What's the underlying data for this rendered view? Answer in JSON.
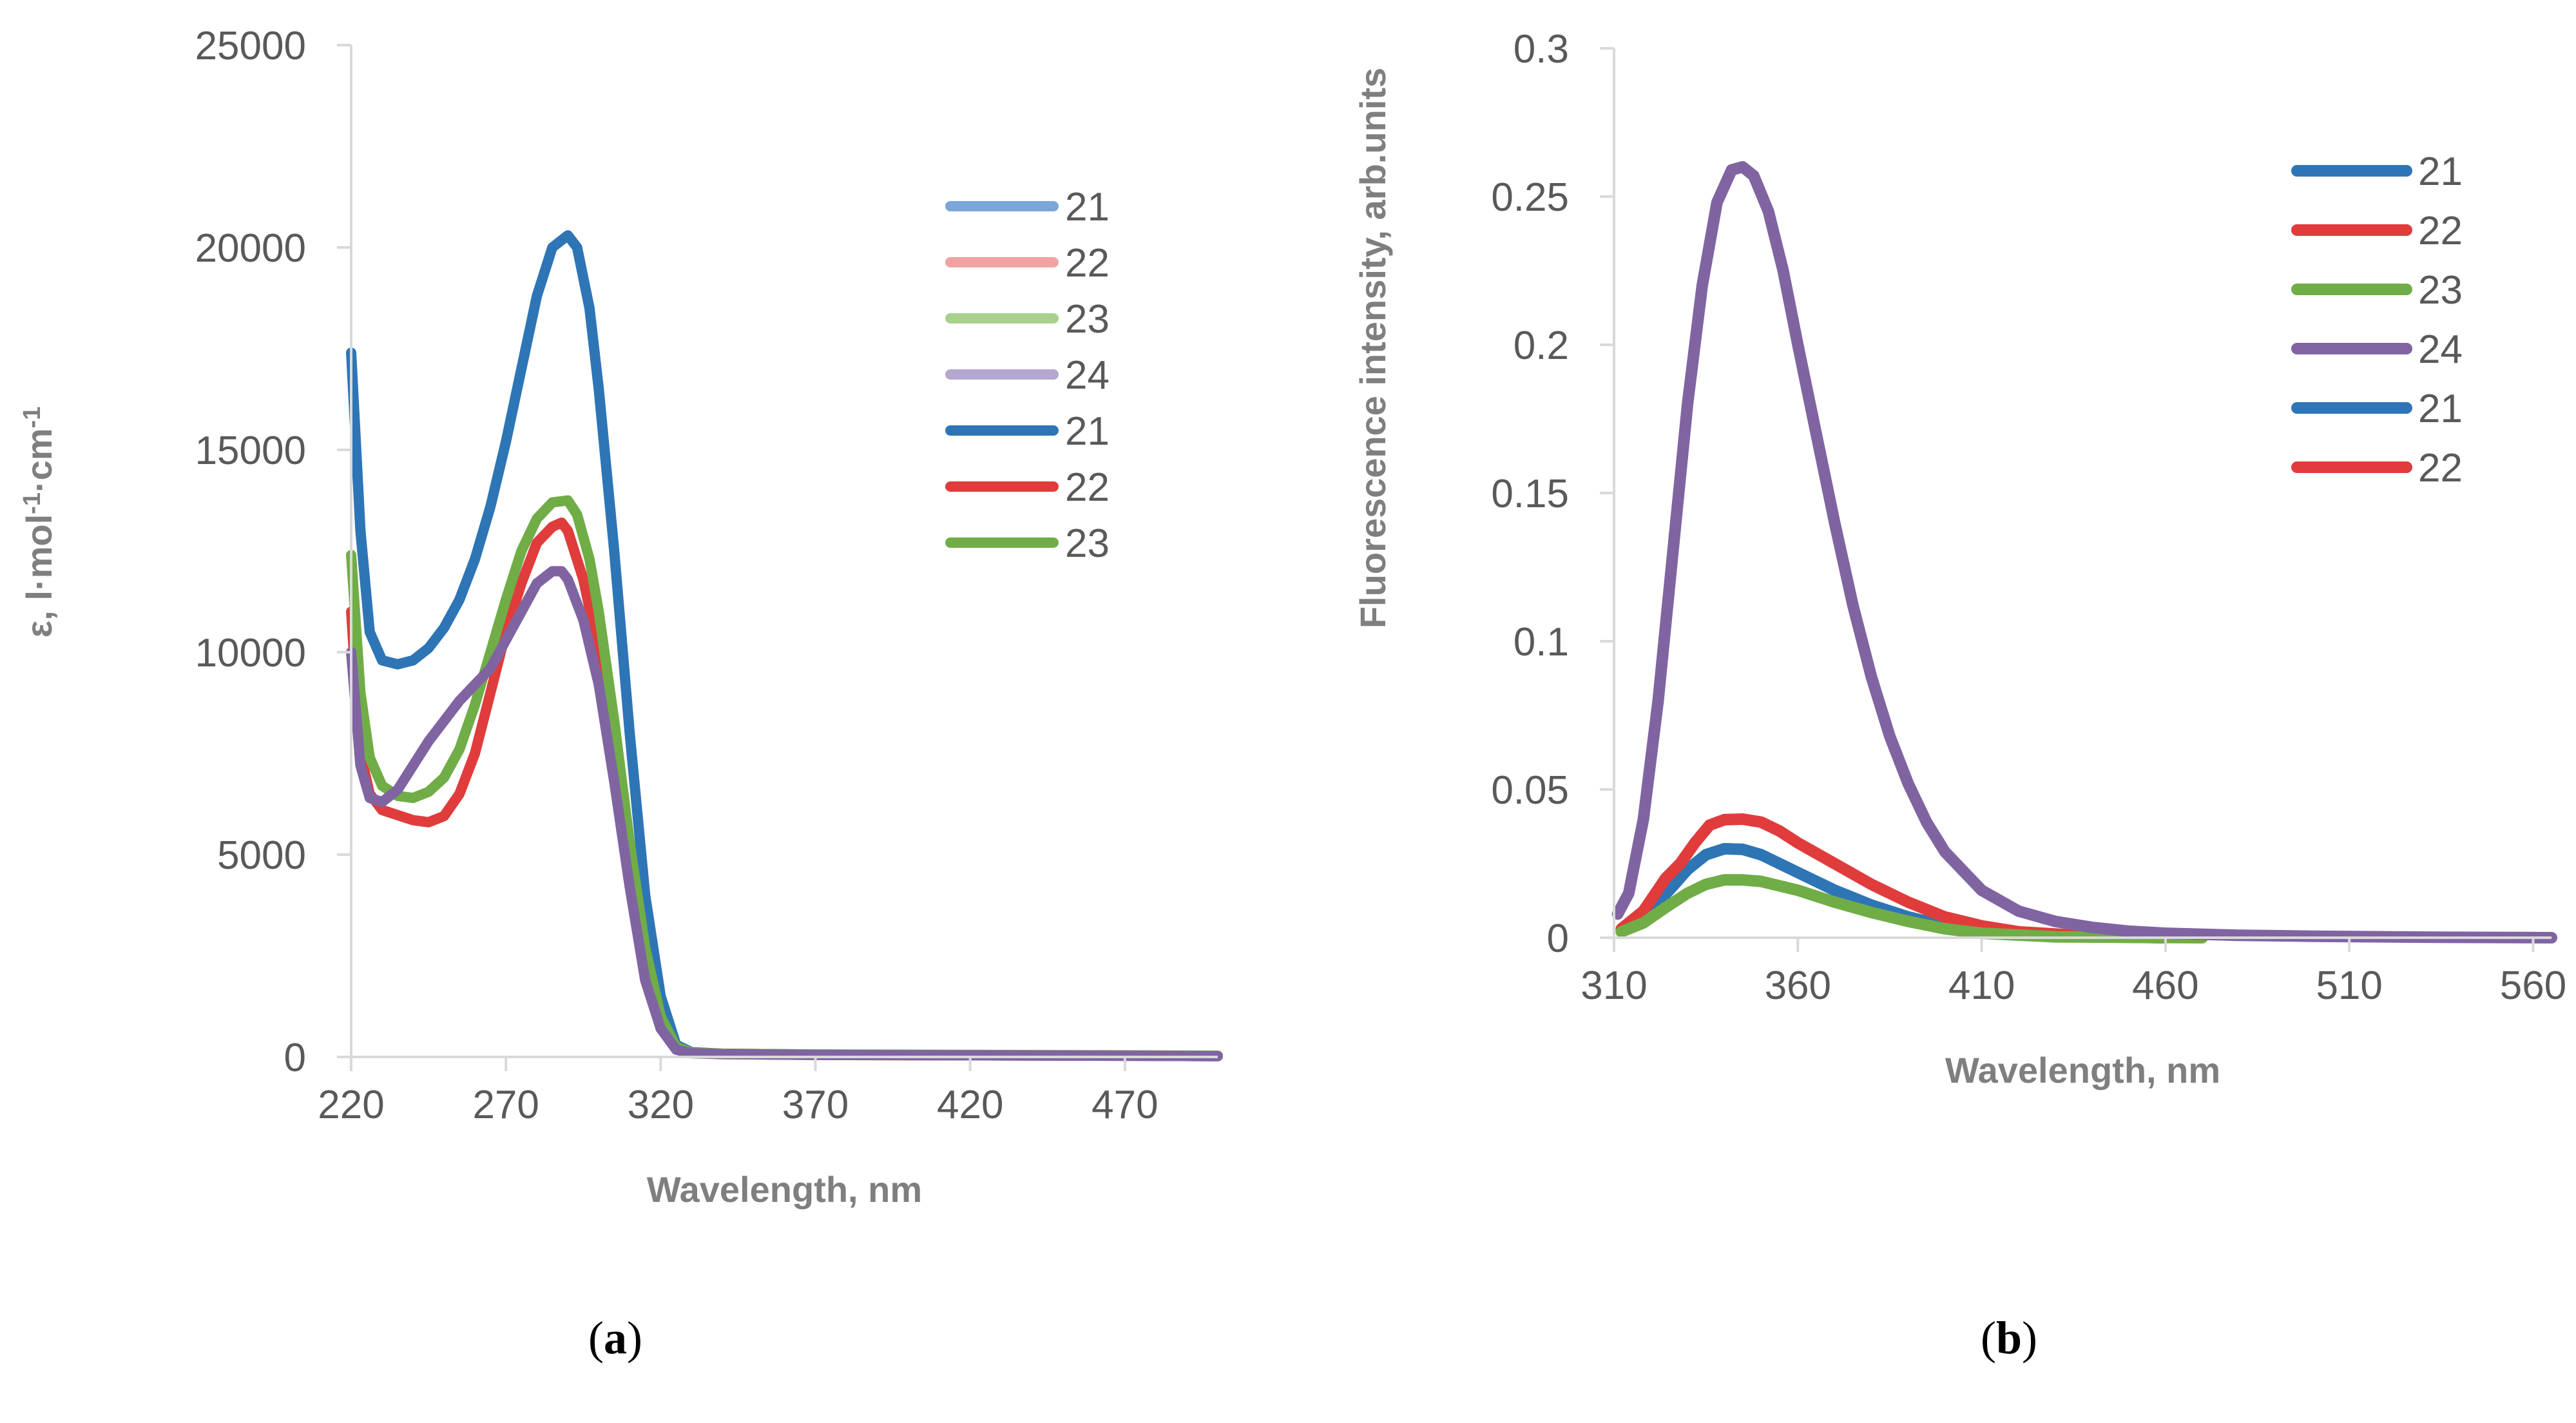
{
  "chart_data": [
    {
      "type": "line",
      "panel_label": "(a)",
      "panel_letter": "a",
      "xlabel": "Wavelength, nm",
      "ylabel": "ε, l·mol⁻¹·cm⁻¹",
      "xlim": [
        220,
        500
      ],
      "ylim": [
        0,
        25000
      ],
      "xticks": [
        220,
        270,
        320,
        370,
        420,
        470
      ],
      "yticks": [
        0,
        5000,
        10000,
        15000,
        20000,
        25000
      ],
      "legend_position": "upper-right",
      "series": [
        {
          "name": "21",
          "color": "#2e75b6",
          "points": [
            [
              220,
              17400
            ],
            [
              223,
              13000
            ],
            [
              226,
              10500
            ],
            [
              230,
              9800
            ],
            [
              235,
              9700
            ],
            [
              240,
              9800
            ],
            [
              245,
              10100
            ],
            [
              250,
              10600
            ],
            [
              255,
              11300
            ],
            [
              260,
              12300
            ],
            [
              265,
              13600
            ],
            [
              270,
              15200
            ],
            [
              275,
              17000
            ],
            [
              280,
              18800
            ],
            [
              285,
              20000
            ],
            [
              290,
              20300
            ],
            [
              293,
              20000
            ],
            [
              297,
              18500
            ],
            [
              300,
              16500
            ],
            [
              305,
              12500
            ],
            [
              310,
              8000
            ],
            [
              315,
              4000
            ],
            [
              320,
              1500
            ],
            [
              325,
              300
            ],
            [
              330,
              120
            ],
            [
              340,
              80
            ],
            [
              370,
              60
            ],
            [
              420,
              40
            ],
            [
              470,
              30
            ],
            [
              500,
              20
            ]
          ]
        },
        {
          "name": "22",
          "color": "#e03c3c",
          "points": [
            [
              220,
              11000
            ],
            [
              223,
              7500
            ],
            [
              226,
              6500
            ],
            [
              230,
              6100
            ],
            [
              240,
              5850
            ],
            [
              245,
              5800
            ],
            [
              250,
              5950
            ],
            [
              255,
              6500
            ],
            [
              260,
              7500
            ],
            [
              265,
              9000
            ],
            [
              270,
              10500
            ],
            [
              275,
              11700
            ],
            [
              280,
              12700
            ],
            [
              285,
              13100
            ],
            [
              288,
              13200
            ],
            [
              290,
              13000
            ],
            [
              295,
              11800
            ],
            [
              300,
              10000
            ],
            [
              305,
              7600
            ],
            [
              310,
              4900
            ],
            [
              315,
              2400
            ],
            [
              320,
              900
            ],
            [
              325,
              220
            ],
            [
              330,
              110
            ],
            [
              340,
              70
            ],
            [
              370,
              50
            ],
            [
              470,
              30
            ],
            [
              500,
              20
            ]
          ]
        },
        {
          "name": "23",
          "color": "#70ad47",
          "points": [
            [
              220,
              12400
            ],
            [
              223,
              9000
            ],
            [
              226,
              7400
            ],
            [
              230,
              6700
            ],
            [
              235,
              6450
            ],
            [
              240,
              6400
            ],
            [
              245,
              6550
            ],
            [
              250,
              6900
            ],
            [
              255,
              7600
            ],
            [
              260,
              8700
            ],
            [
              265,
              10000
            ],
            [
              270,
              11300
            ],
            [
              275,
              12500
            ],
            [
              280,
              13300
            ],
            [
              285,
              13700
            ],
            [
              290,
              13750
            ],
            [
              293,
              13400
            ],
            [
              297,
              12300
            ],
            [
              300,
              11000
            ],
            [
              305,
              8300
            ],
            [
              310,
              5300
            ],
            [
              315,
              2700
            ],
            [
              320,
              1000
            ],
            [
              325,
              250
            ],
            [
              330,
              110
            ],
            [
              340,
              80
            ],
            [
              370,
              60
            ],
            [
              470,
              40
            ],
            [
              500,
              30
            ]
          ]
        },
        {
          "name": "24",
          "color": "#8064a2",
          "points": [
            [
              220,
              10000
            ],
            [
              223,
              7200
            ],
            [
              226,
              6400
            ],
            [
              230,
              6300
            ],
            [
              235,
              6600
            ],
            [
              240,
              7200
            ],
            [
              245,
              7800
            ],
            [
              250,
              8300
            ],
            [
              255,
              8800
            ],
            [
              260,
              9200
            ],
            [
              265,
              9600
            ],
            [
              270,
              10300
            ],
            [
              275,
              11000
            ],
            [
              280,
              11700
            ],
            [
              285,
              12000
            ],
            [
              288,
              12000
            ],
            [
              290,
              11800
            ],
            [
              295,
              10800
            ],
            [
              300,
              9200
            ],
            [
              305,
              6800
            ],
            [
              310,
              4200
            ],
            [
              315,
              1900
            ],
            [
              320,
              700
            ],
            [
              325,
              180
            ],
            [
              330,
              90
            ],
            [
              340,
              70
            ],
            [
              370,
              50
            ],
            [
              420,
              40
            ],
            [
              470,
              30
            ],
            [
              500,
              20
            ]
          ]
        }
      ],
      "legend": [
        {
          "label": "21",
          "color": "#7aa6d8"
        },
        {
          "label": "22",
          "color": "#f1a2a2"
        },
        {
          "label": "23",
          "color": "#a9d18e"
        },
        {
          "label": "24",
          "color": "#b4a7d0"
        },
        {
          "label": "21",
          "color": "#2e75b6"
        },
        {
          "label": "22",
          "color": "#e03c3c"
        },
        {
          "label": "23",
          "color": "#70ad47"
        }
      ]
    },
    {
      "type": "line",
      "panel_label": "(b)",
      "panel_letter": "b",
      "xlabel": "Wavelength, nm",
      "ylabel": "Fluorescence intensity, arb.units",
      "xlim": [
        310,
        565
      ],
      "ylim": [
        0,
        0.3
      ],
      "xticks": [
        310,
        360,
        410,
        460,
        510,
        560
      ],
      "yticks": [
        0,
        0.05,
        0.1,
        0.15,
        0.2,
        0.25,
        0.3
      ],
      "legend_position": "upper-right",
      "series": [
        {
          "name": "21",
          "color": "#2e75b6",
          "points": [
            [
              312,
              0.002
            ],
            [
              318,
              0.007
            ],
            [
              325,
              0.016
            ],
            [
              330,
              0.023
            ],
            [
              335,
              0.028
            ],
            [
              340,
              0.03
            ],
            [
              345,
              0.0298
            ],
            [
              350,
              0.028
            ],
            [
              355,
              0.025
            ],
            [
              360,
              0.022
            ],
            [
              370,
              0.016
            ],
            [
              380,
              0.011
            ],
            [
              390,
              0.007
            ],
            [
              400,
              0.004
            ],
            [
              410,
              0.002
            ],
            [
              420,
              0.001
            ],
            [
              440,
              0.0003
            ],
            [
              460,
              0
            ]
          ]
        },
        {
          "name": "22",
          "color": "#e03c3c",
          "points": [
            [
              312,
              0.003
            ],
            [
              318,
              0.009
            ],
            [
              324,
              0.02
            ],
            [
              328,
              0.025
            ],
            [
              332,
              0.032
            ],
            [
              336,
              0.038
            ],
            [
              340,
              0.0398
            ],
            [
              345,
              0.04
            ],
            [
              350,
              0.039
            ],
            [
              355,
              0.036
            ],
            [
              360,
              0.032
            ],
            [
              370,
              0.025
            ],
            [
              380,
              0.018
            ],
            [
              390,
              0.012
            ],
            [
              400,
              0.007
            ],
            [
              410,
              0.004
            ],
            [
              420,
              0.002
            ],
            [
              440,
              0.0005
            ],
            [
              460,
              0
            ]
          ]
        },
        {
          "name": "23",
          "color": "#70ad47",
          "points": [
            [
              312,
              0.002
            ],
            [
              318,
              0.005
            ],
            [
              325,
              0.011
            ],
            [
              330,
              0.015
            ],
            [
              335,
              0.018
            ],
            [
              340,
              0.0195
            ],
            [
              345,
              0.0195
            ],
            [
              350,
              0.019
            ],
            [
              355,
              0.0175
            ],
            [
              360,
              0.016
            ],
            [
              370,
              0.012
            ],
            [
              380,
              0.0085
            ],
            [
              390,
              0.0055
            ],
            [
              400,
              0.003
            ],
            [
              410,
              0.0015
            ],
            [
              430,
              0.0003
            ],
            [
              470,
              0
            ]
          ]
        },
        {
          "name": "24",
          "color": "#8064a2",
          "points": [
            [
              311,
              0.008
            ],
            [
              314,
              0.015
            ],
            [
              318,
              0.04
            ],
            [
              322,
              0.08
            ],
            [
              326,
              0.13
            ],
            [
              330,
              0.18
            ],
            [
              334,
              0.22
            ],
            [
              338,
              0.248
            ],
            [
              342,
              0.259
            ],
            [
              345,
              0.26
            ],
            [
              348,
              0.257
            ],
            [
              352,
              0.245
            ],
            [
              356,
              0.225
            ],
            [
              360,
              0.2
            ],
            [
              365,
              0.17
            ],
            [
              370,
              0.14
            ],
            [
              375,
              0.112
            ],
            [
              380,
              0.088
            ],
            [
              385,
              0.068
            ],
            [
              390,
              0.052
            ],
            [
              395,
              0.039
            ],
            [
              400,
              0.029
            ],
            [
              410,
              0.016
            ],
            [
              420,
              0.009
            ],
            [
              430,
              0.0055
            ],
            [
              440,
              0.0035
            ],
            [
              450,
              0.0022
            ],
            [
              460,
              0.0015
            ],
            [
              480,
              0.0008
            ],
            [
              500,
              0.0005
            ],
            [
              530,
              0.0002
            ],
            [
              565,
              0
            ]
          ]
        }
      ],
      "legend": [
        {
          "label": "21",
          "color": "#2e75b6"
        },
        {
          "label": "22",
          "color": "#e03c3c"
        },
        {
          "label": "23",
          "color": "#70ad47"
        },
        {
          "label": "24",
          "color": "#8064a2"
        },
        {
          "label": "21",
          "color": "#2e75b6"
        },
        {
          "label": "22",
          "color": "#e03c3c"
        }
      ]
    }
  ]
}
